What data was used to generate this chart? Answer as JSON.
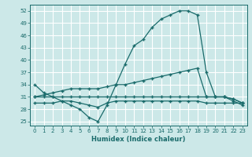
{
  "xlabel": "Humidex (Indice chaleur)",
  "background_color": "#cce8e8",
  "grid_color": "#ffffff",
  "line_color": "#1a6b6b",
  "xlim": [
    -0.5,
    23.5
  ],
  "ylim": [
    24,
    53.5
  ],
  "yticks": [
    25,
    28,
    31,
    34,
    37,
    40,
    43,
    46,
    49,
    52
  ],
  "xticks": [
    0,
    1,
    2,
    3,
    4,
    5,
    6,
    7,
    8,
    9,
    10,
    11,
    12,
    13,
    14,
    15,
    16,
    17,
    18,
    19,
    20,
    21,
    22,
    23
  ],
  "series1_x": [
    0,
    1,
    2,
    3,
    4,
    5,
    6,
    7,
    8,
    9,
    10,
    11,
    12,
    13,
    14,
    15,
    16,
    17,
    18,
    19,
    20,
    21,
    22,
    23
  ],
  "series1_y": [
    34,
    32,
    31,
    30,
    29,
    28,
    26,
    25,
    29,
    34,
    39,
    43.5,
    45,
    48,
    50,
    51,
    52,
    52,
    51,
    37,
    31,
    31,
    30,
    29
  ],
  "series2_x": [
    0,
    1,
    2,
    3,
    4,
    5,
    6,
    7,
    8,
    9,
    10,
    11,
    12,
    13,
    14,
    15,
    16,
    17,
    18,
    19,
    20,
    21,
    22,
    23
  ],
  "series2_y": [
    31,
    31,
    31,
    31,
    31,
    31,
    31,
    31,
    31,
    31,
    31,
    31,
    31,
    31,
    31,
    31,
    31,
    31,
    31,
    31,
    31,
    31,
    30.5,
    29.5
  ],
  "series3_x": [
    0,
    1,
    2,
    3,
    4,
    5,
    6,
    7,
    8,
    9,
    10,
    11,
    12,
    13,
    14,
    15,
    16,
    17,
    18,
    19,
    20,
    21,
    22,
    23
  ],
  "series3_y": [
    31,
    31.5,
    32,
    32.5,
    33,
    33,
    33,
    33,
    33.5,
    34,
    34,
    34.5,
    35,
    35.5,
    36,
    36.5,
    37,
    37.5,
    38,
    31,
    31,
    31,
    30.5,
    29.5
  ],
  "series4_x": [
    0,
    1,
    2,
    3,
    4,
    5,
    6,
    7,
    8,
    9,
    10,
    11,
    12,
    13,
    14,
    15,
    16,
    17,
    18,
    19,
    20,
    21,
    22,
    23
  ],
  "series4_y": [
    29.5,
    29.5,
    29.5,
    30,
    30,
    29.5,
    29,
    28.5,
    29.5,
    30,
    30,
    30,
    30,
    30,
    30,
    30,
    30,
    30,
    30,
    29.5,
    29.5,
    29.5,
    29.5,
    29.5
  ]
}
